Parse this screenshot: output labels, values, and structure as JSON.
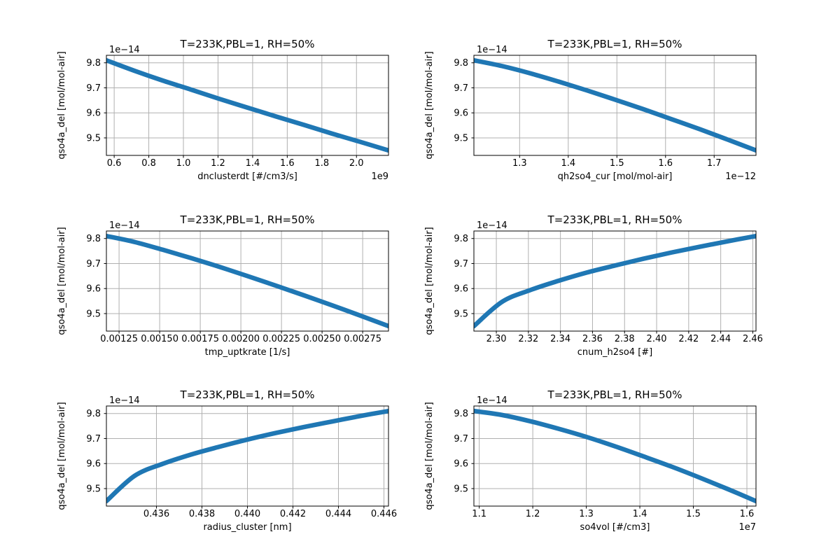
{
  "figure": {
    "background": "#ffffff",
    "line_color": "#1f77b4",
    "grid_color": "#b0b0b0",
    "spine_color": "#000000",
    "line_width": 6.5
  },
  "chart_data": [
    {
      "type": "line",
      "id": "dnclusterdt",
      "title": "T=233K,PBL=1, RH=50%",
      "xlabel": "dnclusterdt [#/cm3/s]",
      "ylabel": "qso4a_del [mol/mol-air]",
      "x_offset_label": "1e9",
      "y_offset_label": "1e−14",
      "grid": true,
      "legend": "none",
      "xlim": [
        0.555,
        2.185
      ],
      "ylim": [
        9.43,
        9.83
      ],
      "xticks": [
        0.6,
        0.8,
        1.0,
        1.2,
        1.4,
        1.6,
        1.8,
        2.0
      ],
      "xtick_labels": [
        "0.6",
        "0.8",
        "1.0",
        "1.2",
        "1.4",
        "1.6",
        "1.8",
        "2.0"
      ],
      "yticks": [
        9.5,
        9.6,
        9.7,
        9.8
      ],
      "ytick_labels": [
        "9.5",
        "9.6",
        "9.7",
        "9.8"
      ],
      "x": [
        0.555,
        0.718,
        0.881,
        1.044,
        1.207,
        1.37,
        1.533,
        1.696,
        1.859,
        2.022,
        2.185
      ],
      "y": [
        9.81,
        9.768,
        9.729,
        9.693,
        9.656,
        9.621,
        9.586,
        9.552,
        9.517,
        9.484,
        9.45
      ]
    },
    {
      "type": "line",
      "id": "qh2so4_cur",
      "title": "T=233K,PBL=1, RH=50%",
      "xlabel": "qh2so4_cur [mol/mol-air]",
      "ylabel": "qso4a_del [mol/mol-air]",
      "x_offset_label": "1e−12",
      "y_offset_label": "1e−14",
      "grid": true,
      "legend": "none",
      "xlim": [
        1.206,
        1.786
      ],
      "ylim": [
        9.43,
        9.83
      ],
      "xticks": [
        1.3,
        1.4,
        1.5,
        1.6,
        1.7
      ],
      "xtick_labels": [
        "1.3",
        "1.4",
        "1.5",
        "1.6",
        "1.7"
      ],
      "yticks": [
        9.5,
        9.6,
        9.7,
        9.8
      ],
      "ytick_labels": [
        "9.5",
        "9.6",
        "9.7",
        "9.8"
      ],
      "x": [
        1.206,
        1.264,
        1.322,
        1.38,
        1.438,
        1.496,
        1.554,
        1.612,
        1.67,
        1.728,
        1.786
      ],
      "y": [
        9.81,
        9.787,
        9.758,
        9.725,
        9.69,
        9.653,
        9.615,
        9.575,
        9.535,
        9.493,
        9.45
      ]
    },
    {
      "type": "line",
      "id": "tmp_uptkrate",
      "title": "T=233K,PBL=1, RH=50%",
      "xlabel": "tmp_uptkrate [1/s]",
      "ylabel": "qso4a_del [mol/mol-air]",
      "x_offset_label": "",
      "y_offset_label": "1e−14",
      "grid": true,
      "legend": "none",
      "xlim": [
        0.001172,
        0.002909
      ],
      "ylim": [
        9.43,
        9.83
      ],
      "xticks": [
        0.00125,
        0.0015,
        0.00175,
        0.002,
        0.00225,
        0.0025,
        0.00275
      ],
      "xtick_labels": [
        "0.00125",
        "0.00150",
        "0.00175",
        "0.00200",
        "0.00225",
        "0.00250",
        "0.00275"
      ],
      "yticks": [
        9.5,
        9.6,
        9.7,
        9.8
      ],
      "ytick_labels": [
        "9.5",
        "9.6",
        "9.7",
        "9.8"
      ],
      "x": [
        0.001172,
        0.001346,
        0.001519,
        0.001693,
        0.001867,
        0.00204,
        0.002214,
        0.002388,
        0.002562,
        0.002735,
        0.002909
      ],
      "y": [
        9.81,
        9.786,
        9.755,
        9.722,
        9.687,
        9.65,
        9.612,
        9.573,
        9.533,
        9.492,
        9.45
      ]
    },
    {
      "type": "line",
      "id": "cnum_h2so4",
      "title": "T=233K,PBL=1, RH=50%",
      "xlabel": "cnum_h2so4 [#]",
      "ylabel": "qso4a_del [mol/mol-air]",
      "x_offset_label": "",
      "y_offset_label": "1e−14",
      "grid": true,
      "legend": "none",
      "xlim": [
        2.286,
        2.462
      ],
      "ylim": [
        9.43,
        9.83
      ],
      "xticks": [
        2.3,
        2.32,
        2.34,
        2.36,
        2.38,
        2.4,
        2.42,
        2.44,
        2.46
      ],
      "xtick_labels": [
        "2.30",
        "2.32",
        "2.34",
        "2.36",
        "2.38",
        "2.40",
        "2.42",
        "2.44",
        "2.46"
      ],
      "yticks": [
        9.5,
        9.6,
        9.7,
        9.8
      ],
      "ytick_labels": [
        "9.5",
        "9.6",
        "9.7",
        "9.8"
      ],
      "x": [
        2.286,
        2.3036,
        2.3212,
        2.3388,
        2.3564,
        2.374,
        2.3916,
        2.4092,
        2.4268,
        2.4444,
        2.462
      ],
      "y": [
        9.45,
        9.547,
        9.594,
        9.631,
        9.664,
        9.692,
        9.719,
        9.744,
        9.767,
        9.789,
        9.81
      ]
    },
    {
      "type": "line",
      "id": "radius_cluster",
      "title": "T=233K,PBL=1, RH=50%",
      "xlabel": "radius_cluster [nm]",
      "ylabel": "qso4a_del [mol/mol-air]",
      "x_offset_label": "",
      "y_offset_label": "1e−14",
      "grid": true,
      "legend": "none",
      "xlim": [
        0.4338,
        0.4462
      ],
      "ylim": [
        9.43,
        9.83
      ],
      "xticks": [
        0.436,
        0.438,
        0.44,
        0.442,
        0.444,
        0.446
      ],
      "xtick_labels": [
        "0.436",
        "0.438",
        "0.440",
        "0.442",
        "0.444",
        "0.446"
      ],
      "yticks": [
        9.5,
        9.6,
        9.7,
        9.8
      ],
      "ytick_labels": [
        "9.5",
        "9.6",
        "9.7",
        "9.8"
      ],
      "x": [
        0.4338,
        0.43504,
        0.43628,
        0.43752,
        0.43876,
        0.44,
        0.44124,
        0.44248,
        0.44372,
        0.44496,
        0.4462
      ],
      "y": [
        9.45,
        9.551,
        9.599,
        9.636,
        9.667,
        9.696,
        9.722,
        9.746,
        9.768,
        9.79,
        9.81
      ]
    },
    {
      "type": "line",
      "id": "so4vol",
      "title": "T=233K,PBL=1, RH=50%",
      "xlabel": "so4vol [#/cm3]",
      "ylabel": "qso4a_del [mol/mol-air]",
      "x_offset_label": "1e7",
      "y_offset_label": "1e−14",
      "grid": true,
      "legend": "none",
      "xlim": [
        1.09,
        1.617
      ],
      "ylim": [
        9.43,
        9.83
      ],
      "xticks": [
        1.1,
        1.2,
        1.3,
        1.4,
        1.5,
        1.6
      ],
      "xtick_labels": [
        "1.1",
        "1.2",
        "1.3",
        "1.4",
        "1.5",
        "1.6"
      ],
      "yticks": [
        9.5,
        9.6,
        9.7,
        9.8
      ],
      "ytick_labels": [
        "9.5",
        "9.6",
        "9.7",
        "9.8"
      ],
      "x": [
        1.09,
        1.1427,
        1.1954,
        1.2481,
        1.3008,
        1.3535,
        1.4062,
        1.4589,
        1.5116,
        1.5643,
        1.617
      ],
      "y": [
        9.81,
        9.794,
        9.769,
        9.739,
        9.706,
        9.669,
        9.629,
        9.588,
        9.544,
        9.498,
        9.45
      ]
    }
  ]
}
